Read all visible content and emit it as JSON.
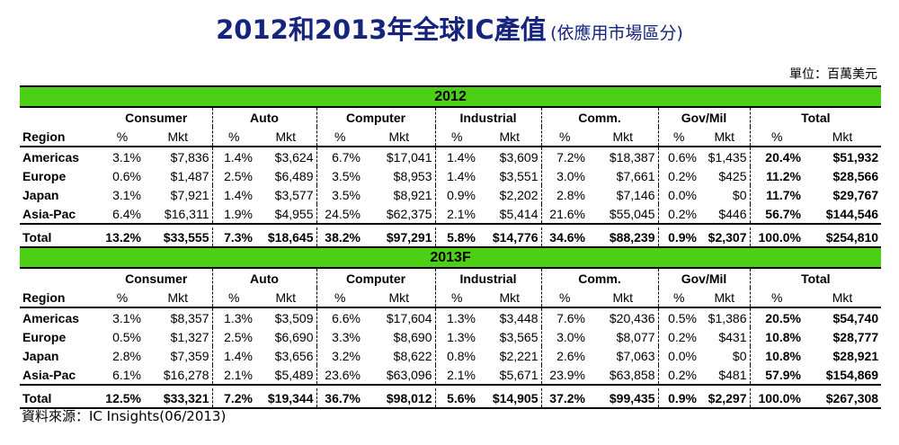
{
  "title": {
    "main": "2012和2013年全球IC產值",
    "sub": "(依應用市場區分)"
  },
  "unit_label": "單位：百萬美元",
  "source": "資料來源：IC Insights(06/2013)",
  "colors": {
    "title": "#16247e",
    "year_band": "#4ccf14"
  },
  "chart_data": {
    "type": "table",
    "region_label": "Region",
    "categories": [
      "Consumer",
      "Auto",
      "Computer",
      "Industrial",
      "Comm.",
      "Gov/Mil",
      "Total"
    ],
    "sub_headers": [
      "%",
      "Mkt"
    ],
    "tables": [
      {
        "year": "2012",
        "rows": [
          {
            "region": "Americas",
            "cells": [
              "3.1%",
              "$7,836",
              "1.4%",
              "$3,624",
              "6.7%",
              "$17,041",
              "1.4%",
              "$3,609",
              "7.2%",
              "$18,387",
              "0.6%",
              "$1,435",
              "20.4%",
              "$51,932"
            ]
          },
          {
            "region": "Europe",
            "cells": [
              "0.6%",
              "$1,487",
              "2.5%",
              "$6,489",
              "3.5%",
              "$8,953",
              "1.4%",
              "$3,551",
              "3.0%",
              "$7,661",
              "0.2%",
              "$425",
              "11.2%",
              "$28,566"
            ]
          },
          {
            "region": "Japan",
            "cells": [
              "3.1%",
              "$7,921",
              "1.4%",
              "$3,577",
              "3.5%",
              "$8,921",
              "0.9%",
              "$2,202",
              "2.8%",
              "$7,146",
              "0.0%",
              "$0",
              "11.7%",
              "$29,767"
            ]
          },
          {
            "region": "Asia-Pac",
            "cells": [
              "6.4%",
              "$16,311",
              "1.9%",
              "$4,955",
              "24.5%",
              "$62,375",
              "2.1%",
              "$5,414",
              "21.6%",
              "$55,045",
              "0.2%",
              "$446",
              "56.7%",
              "$144,546"
            ]
          }
        ],
        "total": {
          "region": "Total",
          "cells": [
            "13.2%",
            "$33,555",
            "7.3%",
            "$18,645",
            "38.2%",
            "$97,291",
            "5.8%",
            "$14,776",
            "34.6%",
            "$88,239",
            "0.9%",
            "$2,307",
            "100.0%",
            "$254,810"
          ]
        }
      },
      {
        "year": "2013F",
        "rows": [
          {
            "region": "Americas",
            "cells": [
              "3.1%",
              "$8,357",
              "1.3%",
              "$3,509",
              "6.6%",
              "$17,604",
              "1.3%",
              "$3,448",
              "7.6%",
              "$20,436",
              "0.5%",
              "$1,386",
              "20.5%",
              "$54,740"
            ]
          },
          {
            "region": "Europe",
            "cells": [
              "0.5%",
              "$1,327",
              "2.5%",
              "$6,690",
              "3.3%",
              "$8,690",
              "1.3%",
              "$3,565",
              "3.0%",
              "$8,077",
              "0.2%",
              "$431",
              "10.8%",
              "$28,777"
            ]
          },
          {
            "region": "Japan",
            "cells": [
              "2.8%",
              "$7,359",
              "1.4%",
              "$3,656",
              "3.2%",
              "$8,622",
              "0.8%",
              "$2,221",
              "2.6%",
              "$7,063",
              "0.0%",
              "$0",
              "10.8%",
              "$28,921"
            ]
          },
          {
            "region": "Asia-Pac",
            "cells": [
              "6.1%",
              "$16,278",
              "2.1%",
              "$5,489",
              "23.6%",
              "$63,096",
              "2.1%",
              "$5,671",
              "23.9%",
              "$63,858",
              "0.2%",
              "$481",
              "57.9%",
              "$154,869"
            ]
          }
        ],
        "total": {
          "region": "Total",
          "cells": [
            "12.5%",
            "$33,321",
            "7.2%",
            "$19,344",
            "36.7%",
            "$98,012",
            "5.6%",
            "$14,905",
            "37.2%",
            "$99,435",
            "0.9%",
            "$2,297",
            "100.0%",
            "$267,308"
          ]
        }
      }
    ]
  }
}
